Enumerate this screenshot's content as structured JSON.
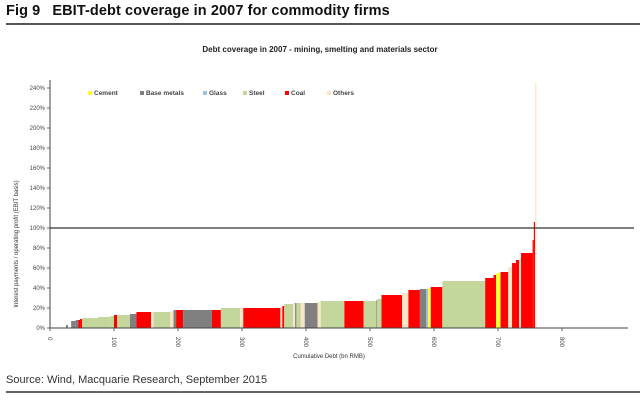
{
  "figure": {
    "number": "Fig 9",
    "title": "EBIT-debt coverage in 2007 for commodity firms",
    "source": "Source: Wind, Macquarie Research, September 2015"
  },
  "chart_data": {
    "type": "bar",
    "subtype": "variable-width cumulative bar (step) chart",
    "title": "Debt coverage in 2007 - mining, smelting and materials sector",
    "xlabel": "Cumulative Debt (bn RMB)",
    "ylabel": "Interest payments / operating profit (EBIT basis)",
    "xlim": [
      0,
      905
    ],
    "ylim": [
      0,
      250
    ],
    "x_ticks": [
      "0",
      "100",
      "200",
      "300",
      "400",
      "500",
      "600",
      "700",
      "800"
    ],
    "x_tick_values": [
      0,
      100,
      200,
      300,
      400,
      500,
      600,
      700,
      800
    ],
    "y_ticks": [
      "0%",
      "20%",
      "40%",
      "60%",
      "80%",
      "100%",
      "120%",
      "140%",
      "160%",
      "180%",
      "200%",
      "220%",
      "240%"
    ],
    "y_tick_values": [
      0,
      20,
      40,
      60,
      80,
      100,
      120,
      140,
      160,
      180,
      200,
      220,
      240
    ],
    "reference_line": {
      "y": 100,
      "label": "100%"
    },
    "grid": false,
    "legend_position": "top-left",
    "legend": [
      {
        "name": "Cement",
        "color": "#ffff33"
      },
      {
        "name": "Base metals",
        "color": "#808080"
      },
      {
        "name": "Glass",
        "color": "#9dc3d6"
      },
      {
        "name": "Steel",
        "color": "#c3d69b"
      },
      {
        "name": "Coal",
        "color": "#ff0000"
      },
      {
        "name": "Others",
        "color": "#fbe5c8"
      }
    ],
    "series": [
      {
        "sector": "Base metals",
        "x_start": 25,
        "x_end": 28,
        "value": 3
      },
      {
        "sector": "Base metals",
        "x_start": 33,
        "x_end": 40,
        "value": 7
      },
      {
        "sector": "Base metals",
        "x_start": 40,
        "x_end": 44,
        "value": 8
      },
      {
        "sector": "Coal",
        "x_start": 44,
        "x_end": 47,
        "value": 8
      },
      {
        "sector": "Coal",
        "x_start": 47,
        "x_end": 50,
        "value": 9
      },
      {
        "sector": "Steel",
        "x_start": 50,
        "x_end": 75,
        "value": 10
      },
      {
        "sector": "Steel",
        "x_start": 75,
        "x_end": 95,
        "value": 11
      },
      {
        "sector": "Steel",
        "x_start": 95,
        "x_end": 100,
        "value": 12
      },
      {
        "sector": "Coal",
        "x_start": 100,
        "x_end": 105,
        "value": 13
      },
      {
        "sector": "Steel",
        "x_start": 105,
        "x_end": 125,
        "value": 13
      },
      {
        "sector": "Base metals",
        "x_start": 125,
        "x_end": 135,
        "value": 14
      },
      {
        "sector": "Coal",
        "x_start": 135,
        "x_end": 158,
        "value": 16
      },
      {
        "sector": "Others",
        "x_start": 158,
        "x_end": 160,
        "value": 16
      },
      {
        "sector": "Others",
        "x_start": 160,
        "x_end": 162,
        "value": 16
      },
      {
        "sector": "Steel",
        "x_start": 162,
        "x_end": 188,
        "value": 16
      },
      {
        "sector": "Others",
        "x_start": 188,
        "x_end": 193,
        "value": 17
      },
      {
        "sector": "Base metals",
        "x_start": 193,
        "x_end": 197,
        "value": 18
      },
      {
        "sector": "Coal",
        "x_start": 197,
        "x_end": 208,
        "value": 18
      },
      {
        "sector": "Base metals",
        "x_start": 208,
        "x_end": 253,
        "value": 18
      },
      {
        "sector": "Coal",
        "x_start": 253,
        "x_end": 267,
        "value": 18
      },
      {
        "sector": "Steel",
        "x_start": 267,
        "x_end": 297,
        "value": 20
      },
      {
        "sector": "Others",
        "x_start": 297,
        "x_end": 302,
        "value": 20
      },
      {
        "sector": "Coal",
        "x_start": 302,
        "x_end": 360,
        "value": 20
      },
      {
        "sector": "Others",
        "x_start": 360,
        "x_end": 363,
        "value": 21
      },
      {
        "sector": "Coal",
        "x_start": 363,
        "x_end": 366,
        "value": 22
      },
      {
        "sector": "Steel",
        "x_start": 366,
        "x_end": 380,
        "value": 24
      },
      {
        "sector": "Others",
        "x_start": 380,
        "x_end": 383,
        "value": 25
      },
      {
        "sector": "Base metals",
        "x_start": 383,
        "x_end": 385,
        "value": 25
      },
      {
        "sector": "Steel",
        "x_start": 385,
        "x_end": 392,
        "value": 25
      },
      {
        "sector": "Others",
        "x_start": 392,
        "x_end": 398,
        "value": 25
      },
      {
        "sector": "Base metals",
        "x_start": 398,
        "x_end": 418,
        "value": 25
      },
      {
        "sector": "Others",
        "x_start": 418,
        "x_end": 423,
        "value": 26
      },
      {
        "sector": "Steel",
        "x_start": 423,
        "x_end": 460,
        "value": 27
      },
      {
        "sector": "Coal",
        "x_start": 460,
        "x_end": 490,
        "value": 27
      },
      {
        "sector": "Steel",
        "x_start": 490,
        "x_end": 510,
        "value": 27
      },
      {
        "sector": "Base metals",
        "x_start": 510,
        "x_end": 511,
        "value": 28
      },
      {
        "sector": "Steel",
        "x_start": 511,
        "x_end": 518,
        "value": 29
      },
      {
        "sector": "Coal",
        "x_start": 518,
        "x_end": 550,
        "value": 33
      },
      {
        "sector": "Others",
        "x_start": 550,
        "x_end": 560,
        "value": 35
      },
      {
        "sector": "Coal",
        "x_start": 560,
        "x_end": 578,
        "value": 38
      },
      {
        "sector": "Base metals",
        "x_start": 578,
        "x_end": 588,
        "value": 39
      },
      {
        "sector": "Glass",
        "x_start": 588,
        "x_end": 591,
        "value": 39
      },
      {
        "sector": "Cement",
        "x_start": 591,
        "x_end": 595,
        "value": 40
      },
      {
        "sector": "Coal",
        "x_start": 595,
        "x_end": 613,
        "value": 41
      },
      {
        "sector": "Steel",
        "x_start": 613,
        "x_end": 680,
        "value": 47
      },
      {
        "sector": "Coal",
        "x_start": 680,
        "x_end": 693,
        "value": 50
      },
      {
        "sector": "Coal",
        "x_start": 693,
        "x_end": 697,
        "value": 53
      },
      {
        "sector": "Cement",
        "x_start": 697,
        "x_end": 704,
        "value": 55
      },
      {
        "sector": "Coal",
        "x_start": 704,
        "x_end": 716,
        "value": 56
      },
      {
        "sector": "Others",
        "x_start": 716,
        "x_end": 722,
        "value": 61
      },
      {
        "sector": "Coal",
        "x_start": 722,
        "x_end": 728,
        "value": 65
      },
      {
        "sector": "Coal",
        "x_start": 728,
        "x_end": 733,
        "value": 68
      },
      {
        "sector": "Others",
        "x_start": 733,
        "x_end": 736,
        "value": 70
      },
      {
        "sector": "Coal",
        "x_start": 736,
        "x_end": 754,
        "value": 75
      },
      {
        "sector": "Coal",
        "x_start": 754,
        "x_end": 756,
        "value": 88
      },
      {
        "sector": "Coal",
        "x_start": 756,
        "x_end": 758,
        "value": 106
      },
      {
        "sector": "Others",
        "x_start": 758,
        "x_end": 760,
        "value": 245
      }
    ]
  }
}
